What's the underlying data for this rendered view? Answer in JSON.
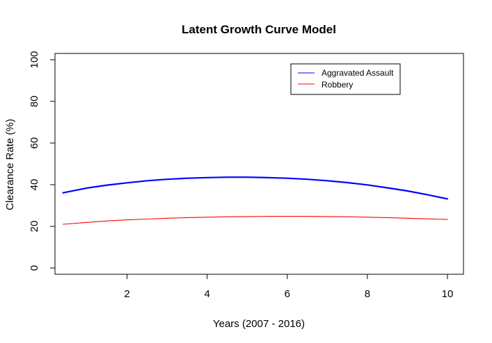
{
  "chart_data": {
    "type": "line",
    "title": "Latent Growth Curve Model",
    "xlabel": "Years (2007 - 2016)",
    "ylabel": "Clearance Rate (%)",
    "xlim": [
      0.2,
      10.4
    ],
    "ylim": [
      -3,
      103
    ],
    "xticks": [
      2,
      4,
      6,
      8,
      10
    ],
    "yticks": [
      0,
      20,
      40,
      60,
      80,
      100
    ],
    "grid": false,
    "legend_position": "top-right",
    "x": [
      0.4,
      1.0,
      1.5,
      2.0,
      2.5,
      3.0,
      3.5,
      4.0,
      4.5,
      5.0,
      5.5,
      6.0,
      6.5,
      7.0,
      7.5,
      8.0,
      8.5,
      9.0,
      9.5,
      10.0
    ],
    "series": [
      {
        "name": "Aggravated Assault",
        "color": "#0000ff",
        "line_width": 2.2,
        "values": [
          36.1,
          38.4,
          39.8,
          40.9,
          41.9,
          42.6,
          43.1,
          43.4,
          43.6,
          43.6,
          43.4,
          43.1,
          42.6,
          41.9,
          41.0,
          39.9,
          38.5,
          37.0,
          35.2,
          33.2
        ]
      },
      {
        "name": "Robbery",
        "color": "#ff0000",
        "line_width": 1.1,
        "values": [
          21.0,
          21.9,
          22.6,
          23.1,
          23.5,
          23.9,
          24.2,
          24.4,
          24.6,
          24.7,
          24.8,
          24.8,
          24.8,
          24.7,
          24.6,
          24.4,
          24.2,
          23.9,
          23.6,
          23.3
        ]
      }
    ]
  }
}
